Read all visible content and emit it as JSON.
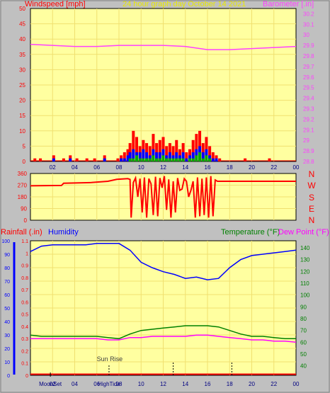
{
  "header": {
    "left_label": "Windspeed [mph]",
    "center_label": "24 hour graph day   October 14 2021",
    "right_label": "Barometer [.in]"
  },
  "panel3_header": {
    "rainfall_label": "Rainfall (.in)",
    "humidity_label": "Humidity",
    "temperature_label": "Temperature (°F)",
    "dewpoint_label": "Dew Point (°F)"
  },
  "compass": {
    "labels": [
      "N",
      "W",
      "S",
      "E",
      "N"
    ]
  },
  "events": {
    "sunrise": "Sun Rise",
    "moonset": "MoonSet",
    "hightide": "HighTide"
  },
  "colors": {
    "plot_bg": "#ffffa0",
    "frame_bg": "#c0c0c0",
    "grid": "#f0e070",
    "wind": "#ff0000",
    "gust_blue": "#0000ff",
    "gust_green": "#00aa00",
    "barometer": "#ff40ff",
    "humidity": "#0000ff",
    "temperature": "#008000",
    "dewpoint": "#ff00ff",
    "rain": "#ff0000"
  },
  "chart_data": [
    {
      "type": "bar",
      "name": "windspeed",
      "x_ticks": [
        "02",
        "04",
        "06",
        "08",
        "10",
        "12",
        "14",
        "16",
        "18",
        "20",
        "22",
        "00"
      ],
      "y_ticks_left": [
        "0",
        "5",
        "10",
        "15",
        "20",
        "25",
        "30",
        "35",
        "40",
        "45",
        "50"
      ],
      "y_ticks_right": [
        "28.8",
        "28.9",
        "29",
        "29.1",
        "29.2",
        "29.3",
        "29.4",
        "29.5",
        "29.6",
        "29.7",
        "29.8",
        "29.9",
        "30",
        "30.1",
        "30.2"
      ],
      "xlim": [
        0,
        24
      ],
      "ylim_left": [
        0,
        50
      ],
      "ylim_right": [
        28.8,
        30.25
      ],
      "barometer_hours": [
        0,
        2,
        4,
        6,
        8,
        10,
        12,
        14,
        16,
        18,
        20,
        22,
        24
      ],
      "barometer": [
        29.91,
        29.9,
        29.89,
        29.89,
        29.9,
        29.9,
        29.9,
        29.89,
        29.86,
        29.86,
        29.87,
        29.88,
        29.89
      ],
      "wind_hours": [
        0.4,
        0.9,
        2.1,
        3.0,
        3.6,
        4.2,
        5.1,
        5.8,
        6.7,
        7.9,
        8.2,
        8.5,
        8.8,
        9.0,
        9.3,
        9.6,
        9.9,
        10.2,
        10.5,
        10.8,
        11.1,
        11.4,
        11.7,
        12.0,
        12.3,
        12.6,
        12.9,
        13.2,
        13.5,
        13.8,
        14.1,
        14.4,
        14.7,
        15.0,
        15.3,
        15.6,
        15.9,
        16.2,
        16.5,
        16.8,
        17.1,
        19.4,
        21.6
      ],
      "wind_mph": [
        1,
        1,
        2,
        1,
        2,
        1,
        1,
        1,
        2,
        1,
        2,
        3,
        4,
        6,
        10,
        8,
        5,
        7,
        6,
        5,
        9,
        6,
        7,
        8,
        5,
        6,
        5,
        7,
        4,
        6,
        3,
        4,
        7,
        9,
        10,
        6,
        8,
        5,
        3,
        2,
        1,
        1,
        1
      ],
      "gust_blue_mph": [
        0,
        0,
        1,
        0,
        1,
        0,
        0,
        0,
        1,
        0,
        1,
        1,
        2,
        3,
        4,
        3,
        3,
        4,
        3,
        2,
        4,
        3,
        3,
        4,
        2,
        3,
        2,
        3,
        2,
        3,
        1,
        2,
        3,
        4,
        5,
        3,
        4,
        2,
        1,
        1,
        0,
        0,
        0
      ],
      "gust_green_mph": [
        0,
        0,
        0,
        0,
        0,
        0,
        0,
        0,
        0,
        0,
        0,
        0,
        0,
        1,
        1,
        2,
        1,
        1,
        1,
        1,
        2,
        1,
        1,
        2,
        1,
        1,
        1,
        1,
        1,
        1,
        0,
        1,
        1,
        2,
        3,
        1,
        2,
        1,
        0,
        0,
        0,
        0,
        0
      ]
    },
    {
      "type": "line",
      "name": "wind direction",
      "y_ticks": [
        "0",
        "90",
        "180",
        "270",
        "360"
      ],
      "ylim": [
        0,
        360
      ],
      "x": [
        0,
        2.8,
        3.0,
        5.5,
        7.0,
        7.8,
        8.8,
        9.0,
        9.1,
        9.3,
        9.5,
        9.7,
        9.9,
        10.1,
        10.3,
        10.5,
        10.7,
        10.9,
        11.1,
        11.3,
        11.5,
        11.7,
        11.9,
        12.1,
        12.3,
        12.5,
        12.7,
        12.9,
        13.1,
        13.3,
        13.5,
        13.7,
        13.9,
        14.1,
        14.3,
        14.5,
        14.7,
        14.9,
        15.1,
        15.3,
        15.5,
        15.7,
        15.9,
        16.1,
        16.3,
        16.5,
        16.7,
        16.9,
        17.1,
        18,
        20,
        22,
        24
      ],
      "y": [
        265,
        268,
        285,
        290,
        300,
        315,
        320,
        315,
        20,
        290,
        325,
        180,
        320,
        60,
        330,
        20,
        320,
        280,
        40,
        335,
        30,
        325,
        250,
        340,
        80,
        315,
        20,
        300,
        60,
        325,
        230,
        240,
        320,
        300,
        180,
        230,
        300,
        20,
        330,
        30,
        320,
        40,
        330,
        20,
        340,
        30,
        310,
        300,
        300,
        300,
        300,
        300,
        300
      ]
    },
    {
      "type": "line",
      "name": "rainfall humidity temperature dew point",
      "x_ticks": [
        "02",
        "04",
        "06",
        "08",
        "10",
        "12",
        "14",
        "16",
        "18",
        "20",
        "22",
        "00"
      ],
      "y_ticks_humidity": [
        "0",
        "10",
        "20",
        "30",
        "40",
        "50",
        "60",
        "70",
        "80",
        "90",
        "100"
      ],
      "y_ticks_rain": [
        "0",
        "0.1",
        "0.2",
        "0.3",
        "0.4",
        "0.5",
        "0.6",
        "0.7",
        "0.8",
        "0.9",
        "1",
        "1.1"
      ],
      "y_ticks_temp": [
        "40",
        "50",
        "60",
        "70",
        "80",
        "90",
        "100",
        "110",
        "120",
        "130",
        "140"
      ],
      "ylim_humidity": [
        0,
        100
      ],
      "ylim_rain": [
        0,
        1.1
      ],
      "ylim_temp": [
        32,
        146
      ],
      "x": [
        0,
        1,
        2,
        3,
        4,
        5,
        6,
        7,
        8,
        9,
        10,
        11,
        12,
        13,
        14,
        15,
        16,
        17,
        18,
        19,
        20,
        21,
        22,
        23,
        24
      ],
      "humidity": [
        92,
        96,
        97,
        97,
        97,
        97,
        98,
        98,
        98,
        93,
        84,
        80,
        77,
        75,
        72,
        73,
        71,
        72,
        80,
        86,
        89,
        90,
        91,
        92,
        93
      ],
      "temperature_f": [
        66,
        65,
        65,
        65,
        65,
        65,
        65,
        64,
        63,
        67,
        70,
        71,
        72,
        73,
        74,
        74,
        74,
        73,
        70,
        67,
        65,
        65,
        64,
        63,
        63
      ],
      "dewpoint_f": [
        63,
        63,
        63,
        63,
        63,
        63,
        63,
        62,
        62,
        64,
        64,
        65,
        65,
        65,
        65,
        66,
        66,
        65,
        64,
        63,
        62,
        62,
        61,
        61,
        60
      ],
      "rain_in": [
        0,
        0,
        0,
        0,
        0,
        0,
        0,
        0,
        0,
        0,
        0,
        0,
        0,
        0,
        0,
        0,
        0,
        0,
        0,
        0,
        0,
        0,
        0,
        0,
        0
      ],
      "event_hours": {
        "sunrise": 7.1,
        "moonset": 1.8,
        "hightide": 7.1,
        "noon": 12.9,
        "sunset": 18.2
      }
    }
  ]
}
